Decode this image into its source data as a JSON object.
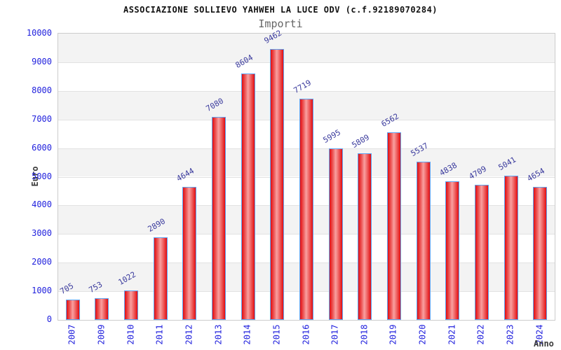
{
  "header": {
    "title": "ASSOCIAZIONE SOLLIEVO YAHWEH LA LUCE ODV (c.f.92189070284)",
    "subtitle": "Importi"
  },
  "chart_data": {
    "type": "bar",
    "title": "ASSOCIAZIONE SOLLIEVO YAHWEH LA LUCE ODV (c.f.92189070284)",
    "subtitle": "Importi",
    "xlabel": "Anno",
    "ylabel": "Euro",
    "categories": [
      "2007",
      "2009",
      "2010",
      "2011",
      "2012",
      "2013",
      "2014",
      "2015",
      "2016",
      "2017",
      "2018",
      "2019",
      "2020",
      "2021",
      "2022",
      "2023",
      "2024"
    ],
    "values": [
      705,
      753,
      1022,
      2890,
      4644,
      7080,
      8604,
      9462,
      7719,
      5995,
      5809,
      6562,
      5537,
      4838,
      4709,
      5041,
      4654
    ],
    "ylim": [
      0,
      10000
    ],
    "ytick_step": 1000,
    "yticks": [
      0,
      1000,
      2000,
      3000,
      4000,
      5000,
      6000,
      7000,
      8000,
      9000,
      10000
    ],
    "legend": null,
    "grid": "horizontal gridlines with alternating gray/white bands",
    "band_colors": [
      "#f3f3f3",
      "#ffffff"
    ],
    "gridline_color": "#e2e2e2",
    "plot_border_color": "#cccccc",
    "bar_edge_color": "#e31215",
    "bar_center_color": "#f9a0a0",
    "bar_border_color": "#5ea4f2",
    "value_label_color": "#3a3a9d",
    "tick_label_color": "#1f1fdd",
    "axis_title_color": "#3b3b3b",
    "title_color": "#111111",
    "subtitle_color": "#666666"
  }
}
